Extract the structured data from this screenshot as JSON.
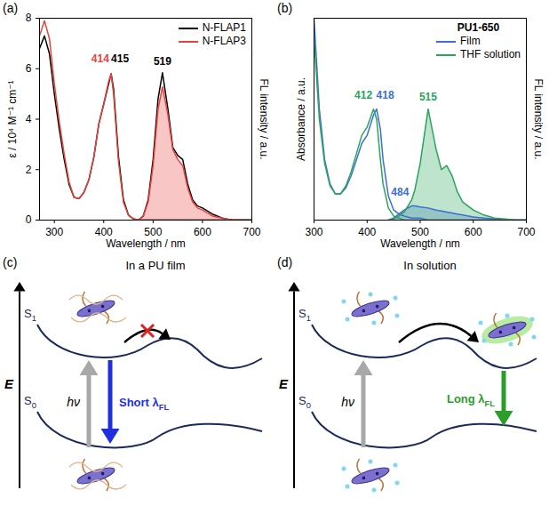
{
  "chart_data": [
    {
      "type": "line",
      "panel": "(a)",
      "x_label": "Wavelength / nm",
      "y_label": "ε / 10⁴ M⁻¹ cm⁻¹",
      "y2_label": "FL intensity / a.u.",
      "x": [
        270,
        280,
        290,
        300,
        310,
        320,
        330,
        340,
        350,
        360,
        370,
        380,
        390,
        400,
        410,
        415,
        420,
        430,
        440,
        450,
        460,
        470,
        480,
        490,
        500,
        510,
        519,
        530,
        540,
        550,
        560,
        570,
        580,
        590,
        600,
        620,
        640,
        660,
        680,
        700
      ],
      "xlim": [
        270,
        700
      ],
      "xticks": [
        300,
        400,
        500,
        600,
        700
      ],
      "ylim": [
        0,
        8
      ],
      "yticks": [
        0,
        2,
        4,
        6,
        8
      ],
      "y2lim": [
        0,
        1
      ],
      "y2ticks": [],
      "legend": "top-right",
      "series": [
        {
          "name": "N-FLAP1",
          "color": "#000000",
          "type": "line",
          "values": [
            6.8,
            7.3,
            6.6,
            5.0,
            3.6,
            2.4,
            1.4,
            0.9,
            0.85,
            1.1,
            1.6,
            2.5,
            3.8,
            4.6,
            5.4,
            5.8,
            5.2,
            2.5,
            0.8,
            0.2,
            0.05,
            0,
            0,
            0,
            0,
            0,
            0,
            0,
            0,
            0,
            0,
            0,
            0,
            0,
            0,
            0,
            0,
            0,
            0,
            0
          ]
        },
        {
          "name": "N-FLAP3",
          "color": "#e8433b",
          "type": "line",
          "values": [
            7.3,
            7.9,
            7.2,
            5.4,
            3.9,
            2.6,
            1.5,
            0.9,
            0.85,
            1.1,
            1.6,
            2.5,
            3.8,
            4.6,
            5.5,
            5.8,
            5.0,
            2.3,
            0.7,
            0.2,
            0.05,
            0,
            0,
            0,
            0,
            0,
            0,
            0,
            0,
            0,
            0,
            0,
            0,
            0,
            0,
            0,
            0,
            0,
            0,
            0
          ]
        },
        {
          "name": "N-FLAP1",
          "color": "#000000",
          "type": "line",
          "axis": "y2",
          "values": [
            null,
            null,
            null,
            null,
            null,
            null,
            null,
            null,
            null,
            null,
            null,
            null,
            null,
            null,
            null,
            null,
            null,
            null,
            null,
            null,
            null,
            0,
            0.02,
            0.1,
            0.3,
            0.6,
            0.73,
            0.55,
            0.36,
            0.32,
            0.3,
            0.18,
            0.1,
            0.07,
            0.06,
            0.03,
            0.01,
            0,
            0,
            0
          ]
        },
        {
          "name": "N-FLAP3",
          "color": "#e8433b",
          "type": "area",
          "axis": "y2",
          "values": [
            null,
            null,
            null,
            null,
            null,
            null,
            null,
            null,
            null,
            null,
            null,
            null,
            null,
            null,
            null,
            null,
            null,
            null,
            null,
            null,
            null,
            0,
            0.02,
            0.09,
            0.27,
            0.55,
            0.66,
            0.52,
            0.35,
            0.3,
            0.27,
            0.16,
            0.09,
            0.06,
            0.05,
            0.02,
            0.01,
            0,
            0,
            0
          ]
        }
      ],
      "annotations": [
        {
          "text": "414",
          "x": 393,
          "y": 6.4,
          "color": "#e8433b"
        },
        {
          "text": "415",
          "x": 433,
          "y": 6.4,
          "color": "#000000"
        },
        {
          "text": "519",
          "x": 519,
          "y": 6.3,
          "color": "#000000"
        }
      ]
    },
    {
      "type": "line",
      "panel": "(b)",
      "title": "PU1-650",
      "x_label": "Wavelength / nm",
      "y_label": "Absorbance / a.u.",
      "y2_label": "FL intensity / a.u.",
      "x": [
        300,
        310,
        320,
        330,
        340,
        350,
        360,
        370,
        380,
        390,
        400,
        412,
        418,
        425,
        430,
        440,
        450,
        460,
        470,
        484,
        490,
        500,
        515,
        530,
        540,
        550,
        560,
        570,
        580,
        600,
        620,
        640,
        660,
        680,
        700
      ],
      "xlim": [
        300,
        700
      ],
      "xticks": [
        300,
        400,
        500,
        600,
        700
      ],
      "ylim": [
        0,
        1
      ],
      "yticks": [],
      "y2lim": [
        0,
        1
      ],
      "y2ticks": [],
      "legend": "top-right",
      "series": [
        {
          "name": "Film",
          "color": "#3b6fd6",
          "type": "line",
          "values": [
            1.0,
            0.55,
            0.3,
            0.18,
            0.13,
            0.13,
            0.16,
            0.22,
            0.3,
            0.38,
            0.42,
            0.52,
            0.55,
            0.45,
            0.3,
            0.12,
            0.05,
            0.03,
            0.02,
            0.01,
            0.01,
            0.01,
            0,
            0,
            0,
            0,
            0,
            0,
            0,
            0,
            0,
            0,
            0,
            0,
            0
          ]
        },
        {
          "name": "THF solution",
          "color": "#2aa55a",
          "type": "line",
          "values": [
            0.9,
            0.5,
            0.28,
            0.17,
            0.13,
            0.13,
            0.17,
            0.24,
            0.33,
            0.42,
            0.46,
            0.55,
            0.5,
            0.3,
            0.18,
            0.06,
            0.02,
            0.01,
            0,
            0,
            0,
            0,
            0,
            0,
            0,
            0,
            0,
            0,
            0,
            0,
            0,
            0,
            0,
            0,
            0
          ]
        },
        {
          "name": "Film",
          "color": "#3b6fd6",
          "type": "area",
          "axis": "y2",
          "values": [
            null,
            null,
            null,
            null,
            null,
            null,
            null,
            null,
            null,
            null,
            null,
            null,
            null,
            null,
            null,
            0,
            0.01,
            0.03,
            0.05,
            0.07,
            0.07,
            0.065,
            0.06,
            0.05,
            0.045,
            0.04,
            0.035,
            0.03,
            0.025,
            0.015,
            0.01,
            0.005,
            0,
            0,
            0
          ]
        },
        {
          "name": "THF solution",
          "color": "#2aa55a",
          "type": "area",
          "axis": "y2",
          "values": [
            null,
            null,
            null,
            null,
            null,
            null,
            null,
            null,
            null,
            null,
            null,
            null,
            null,
            null,
            null,
            0,
            0.005,
            0.02,
            0.04,
            0.1,
            0.15,
            0.28,
            0.55,
            0.35,
            0.25,
            0.27,
            0.22,
            0.14,
            0.09,
            0.05,
            0.025,
            0.01,
            0.005,
            0,
            0
          ]
        }
      ],
      "annotations": [
        {
          "text": "412",
          "x": 393,
          "y": 0.62,
          "color": "#2aa55a"
        },
        {
          "text": "418",
          "x": 434,
          "y": 0.62,
          "color": "#3b6fd6"
        },
        {
          "text": "515",
          "x": 515,
          "y": 0.61,
          "color": "#2aa55a"
        },
        {
          "text": "484",
          "x": 462,
          "y": 0.14,
          "color": "#3b6fd6"
        }
      ]
    }
  ],
  "diagrams": [
    {
      "panel": "(c)",
      "title": "In a PU film",
      "energy_label": "E",
      "s1": {
        "main": "S",
        "sub": "1"
      },
      "s0": {
        "main": "S",
        "sub": "0"
      },
      "excitation": "hν",
      "emission": {
        "main": "Short λ",
        "sub": "FL"
      },
      "transfer_blocked": true
    },
    {
      "panel": "(d)",
      "title": "In solution",
      "energy_label": "E",
      "s1": {
        "main": "S",
        "sub": "1"
      },
      "s0": {
        "main": "S",
        "sub": "0"
      },
      "excitation": "hν",
      "emission": {
        "main": "Long λ",
        "sub": "FL"
      },
      "transfer_blocked": false
    }
  ]
}
